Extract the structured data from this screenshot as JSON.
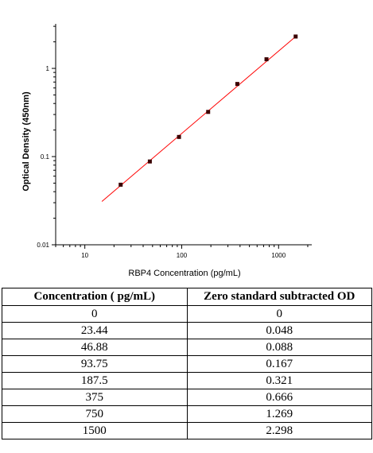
{
  "chart_data": {
    "type": "scatter",
    "xlabel": "RBP4 Concentration (pg/mL)",
    "ylabel": "Optical Density (450nm)",
    "x_scale": "log",
    "y_scale": "log",
    "xlim": [
      5,
      2200
    ],
    "ylim": [
      0.01,
      3.2
    ],
    "x_ticks": [
      10,
      100,
      1000
    ],
    "x_tick_labels": [
      "10",
      "100",
      "1000"
    ],
    "y_ticks": [
      0.01,
      0.1,
      1
    ],
    "y_tick_labels": [
      "0.01",
      "0.1",
      "1"
    ],
    "grid": false,
    "series": [
      {
        "x": [
          23.44,
          46.88,
          93.75,
          187.5,
          375,
          750,
          1500
        ],
        "y": [
          0.048,
          0.088,
          0.167,
          0.321,
          0.666,
          1.269,
          2.298
        ],
        "color": "#3a0000"
      }
    ],
    "fit_line": {
      "x": [
        15,
        1500
      ],
      "y": [
        0.031,
        2.298
      ],
      "color": "#ff0000"
    }
  },
  "table": {
    "headers": [
      "Concentration ( pg/mL)",
      "Zero standard subtracted OD"
    ],
    "rows": [
      [
        "0",
        "0"
      ],
      [
        "23.44",
        "0.048"
      ],
      [
        "46.88",
        "0.088"
      ],
      [
        "93.75",
        "0.167"
      ],
      [
        "187.5",
        "0.321"
      ],
      [
        "375",
        "0.666"
      ],
      [
        "750",
        "1.269"
      ],
      [
        "1500",
        "2.298"
      ]
    ]
  }
}
